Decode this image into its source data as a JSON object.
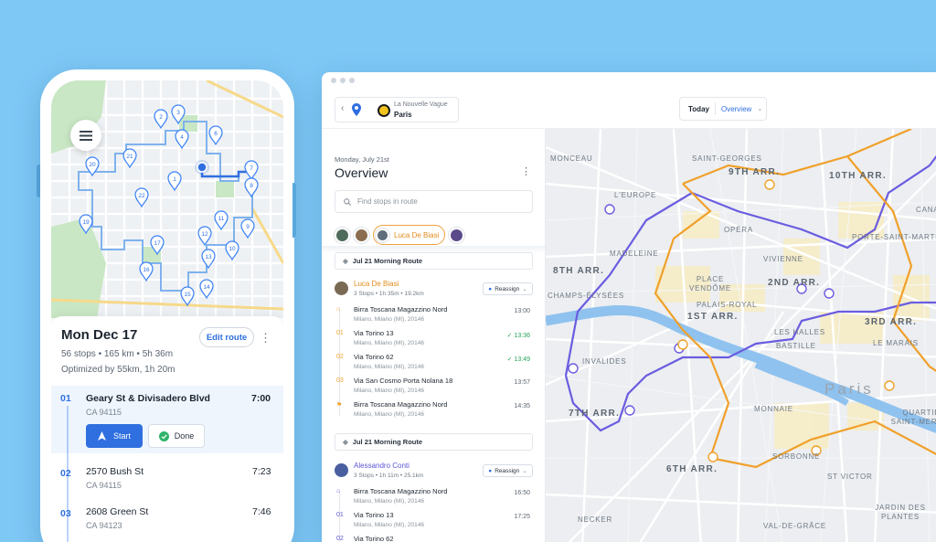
{
  "phone": {
    "title": "Mon Dec 17",
    "meta": "56 stops • 165 km • 5h 36m",
    "optimized": "Optimized by 55km, 1h 20m",
    "edit_route": "Edit route",
    "start_label": "Start",
    "done_label": "Done",
    "map_pins": [
      "1",
      "2",
      "3",
      "4",
      "6",
      "7",
      "8",
      "9",
      "10",
      "11",
      "12",
      "13",
      "14",
      "15",
      "16",
      "17",
      "19",
      "20",
      "21",
      "22"
    ],
    "stops": [
      {
        "num": "01",
        "address": "Geary St & Divisadero Blvd",
        "zip": "CA 94115",
        "time": "7:00"
      },
      {
        "num": "02",
        "address": "2570 Bush St",
        "zip": "CA 94115",
        "time": "7:23"
      },
      {
        "num": "03",
        "address": "2608 Green St",
        "zip": "CA 94123",
        "time": "7:46"
      }
    ]
  },
  "desktop": {
    "location": {
      "name": "La Nouvelle Vague",
      "city": "Paris"
    },
    "date_filter": {
      "today": "Today",
      "view": "Overview"
    },
    "panel": {
      "date": "Monday, July 21st",
      "title": "Overview",
      "search_placeholder": "Find stops in route",
      "selected_driver": "Luca De Biasi",
      "routes": [
        {
          "title": "Jul 21 Morning Route",
          "driver": "Luca De Biasi",
          "driver_meta": "3 Stops • 1h 35m • 19.2km",
          "reassign": "Reassign",
          "stops": [
            {
              "marker": "⌂",
              "name": "Birra Toscana Magazzino Nord",
              "address": "Milano, Milano (MI), 20146",
              "time": "13:00"
            },
            {
              "marker": "01",
              "name": "Via Torino 13",
              "address": "Milano, Milano (MI), 20146",
              "time": "13:36",
              "done": true
            },
            {
              "marker": "02",
              "name": "Via Torino 62",
              "address": "Milano, Milano (MI), 20146",
              "time": "13:49",
              "done": true
            },
            {
              "marker": "03",
              "name": "Via San Cosmo Porta Nolana 18",
              "address": "Milano, Milano (MI), 20146",
              "time": "13:57"
            },
            {
              "marker": "⚑",
              "name": "Birra Toscana Magazzino Nord",
              "address": "Milano, Milano (MI), 20146",
              "time": "14:35"
            }
          ]
        },
        {
          "title": "Jul 21 Morning Route",
          "driver": "Alessandro Conti",
          "driver_meta": "3 Stops • 1h 11m • 25.1km",
          "reassign": "Reassign",
          "stops": [
            {
              "marker": "⌂",
              "name": "Birra Toscana Magazzino Nord",
              "address": "Milano, Milano (MI), 20146",
              "time": "16:50"
            },
            {
              "marker": "01",
              "name": "Via Torino 13",
              "address": "Milano, Milano (MI), 20146",
              "time": "17:25"
            },
            {
              "marker": "02",
              "name": "Via Torino 62",
              "address": "",
              "time": ""
            }
          ]
        }
      ]
    },
    "map_labels": {
      "l1": "MONCEAU",
      "l2": "SAINT-GEORGES",
      "l3": "9TH ARR.",
      "l4": "10TH ARR.",
      "l5": "L'EUROPE",
      "l6": "OPÉRA",
      "l7": "MADELEINE",
      "l8": "VIVIENNE",
      "l9": "8TH ARR.",
      "l10": "2ND ARR.",
      "l11": "PLACE VENDÔME",
      "l12": "CHAMPS-ÉLYSÉES",
      "l13": "PALAIS-ROYAL",
      "l14": "1ST ARR.",
      "l15": "3RD ARR.",
      "l16": "LES HALLES",
      "l17": "LE MARAIS",
      "l18": "BASTILLE",
      "l19": "INVALIDES",
      "l20": "Paris",
      "l21": "7TH ARR.",
      "l22": "MONNAIE",
      "l23": "QUARTIER SAINT-MERRI",
      "l24": "6TH ARR.",
      "l25": "SORBONNE",
      "l26": "ST VICTOR",
      "l27": "NECKER",
      "l28": "VAL-DE-GRÂCE",
      "l29": "JARDIN DES PLANTES",
      "l30": "PORTE-SAINT-MARTIN",
      "l31": "CANAL"
    },
    "colors": {
      "route_purple": "#6a5ce0",
      "route_orange": "#f0a02a",
      "seine": "#8fc2ee"
    }
  }
}
